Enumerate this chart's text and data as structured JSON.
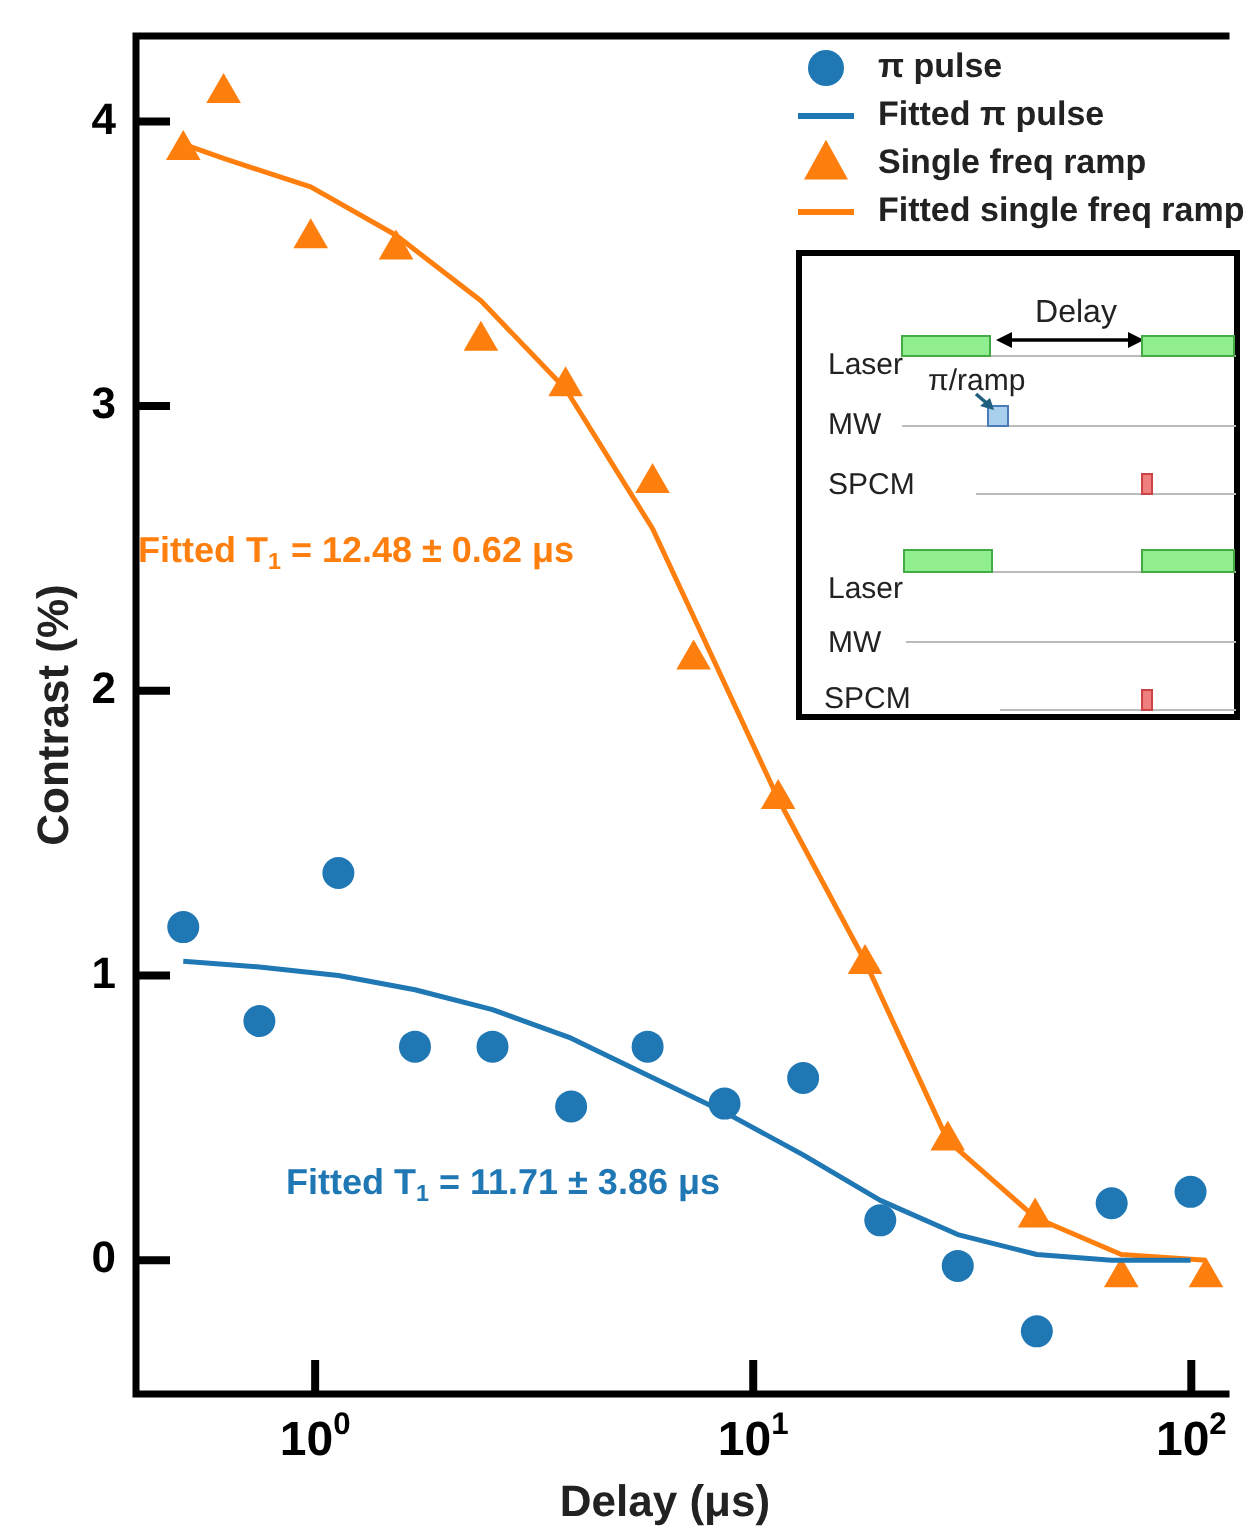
{
  "chart_data": {
    "type": "scatter",
    "xlabel": "Delay (μs)",
    "ylabel": "Contrast (%)",
    "log": "x",
    "xlim": [
      0.39,
      120
    ],
    "ylim": [
      -0.47,
      4.3
    ],
    "xticks": [
      {
        "value": 1,
        "label": "10$^{0}$"
      },
      {
        "value": 10,
        "label": "10$^{1}$"
      },
      {
        "value": 100,
        "label": "10$^{2}$"
      }
    ],
    "yticks": [
      0,
      1,
      2,
      3,
      4
    ],
    "grid": false,
    "legend": "top right",
    "series": [
      {
        "name": "π pulse",
        "marker": "circle",
        "color": "#1f77b4",
        "x": [
          0.5,
          0.746,
          1.13,
          1.69,
          2.54,
          3.84,
          5.74,
          8.6,
          13.0,
          19.5,
          29.3,
          44.4,
          65.8,
          99.6
        ],
        "values": [
          1.17,
          0.84,
          1.36,
          0.75,
          0.75,
          0.54,
          0.75,
          0.55,
          0.64,
          0.14,
          -0.02,
          -0.25,
          0.2,
          0.24
        ]
      },
      {
        "name": "Fitted π pulse",
        "type": "line",
        "marker": "none",
        "color": "#1f77b4",
        "x": [
          0.5,
          0.746,
          1.13,
          1.69,
          2.54,
          3.84,
          5.74,
          8.6,
          13.0,
          19.5,
          29.3,
          44.4,
          65.8,
          99.6
        ],
        "values": [
          1.05,
          1.03,
          1.0,
          0.95,
          0.88,
          0.78,
          0.65,
          0.52,
          0.37,
          0.21,
          0.09,
          0.02,
          0.0,
          0.0
        ]
      },
      {
        "name": "Single freq ramp",
        "marker": "triangle",
        "color": "#ff7f0e",
        "x": [
          0.5,
          0.618,
          0.977,
          1.53,
          2.39,
          3.73,
          5.89,
          7.31,
          11.4,
          18.0,
          27.8,
          44.0,
          69.2,
          108
        ],
        "values": [
          3.9,
          4.1,
          3.59,
          3.55,
          3.23,
          3.07,
          2.73,
          2.11,
          1.62,
          1.04,
          0.42,
          0.15,
          -0.06,
          -0.06
        ]
      },
      {
        "name": "Fitted single freq ramp",
        "type": "line",
        "marker": "none",
        "color": "#ff7f0e",
        "x": [
          0.5,
          0.618,
          0.977,
          1.53,
          2.39,
          3.73,
          5.89,
          7.31,
          11.4,
          18.0,
          27.8,
          44.0,
          69.2,
          108
        ],
        "values": [
          3.92,
          3.87,
          3.77,
          3.6,
          3.37,
          3.06,
          2.57,
          2.26,
          1.62,
          1.05,
          0.42,
          0.15,
          0.02,
          0.0
        ]
      }
    ],
    "annotations": [
      "Fitted T$_{1}$ = 11.71 ± 3.86 μs",
      "Fitted T$_{1}$ = 12.48 ± 0.62 μs",
      "Delay",
      "Laser",
      "π/ramp",
      "MW",
      "SPCM",
      "Laser",
      "MW",
      "SPCM"
    ]
  }
}
